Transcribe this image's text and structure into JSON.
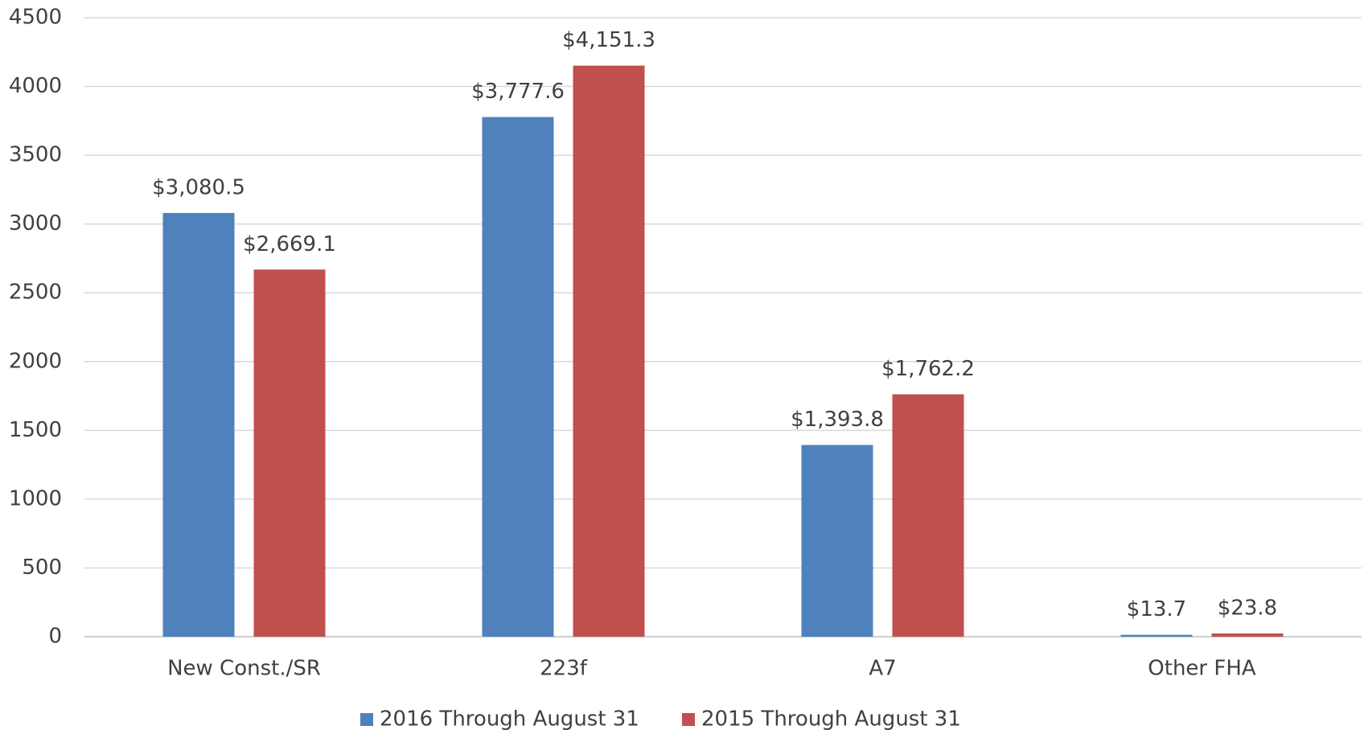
{
  "chart_data": {
    "type": "bar",
    "categories": [
      "New Const./SR",
      "223f",
      "A7",
      "Other FHA"
    ],
    "series": [
      {
        "name": "2016 Through August 31",
        "color": "#4f81bd",
        "values": [
          3080.5,
          3777.6,
          1393.8,
          13.7
        ],
        "value_labels": [
          "$3,080.5",
          "$3,777.6",
          "$1,393.8",
          "$13.7"
        ]
      },
      {
        "name": "2015 Through August 31",
        "color": "#c0504d",
        "values": [
          2669.1,
          4151.3,
          1762.2,
          23.8
        ],
        "value_labels": [
          "$2,669.1",
          "$4,151.3",
          "$1,762.2",
          "$23.8"
        ]
      }
    ],
    "ylim": [
      0,
      4500
    ],
    "yticks": [
      0,
      500,
      1000,
      1500,
      2000,
      2500,
      3000,
      3500,
      4000,
      4500
    ],
    "grid": true,
    "legend": "bottom"
  }
}
